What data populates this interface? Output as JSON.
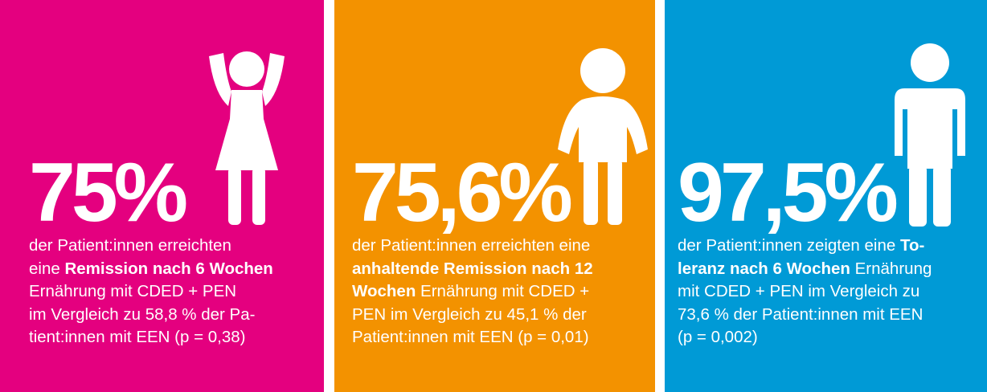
{
  "colors": {
    "panel_1": "#e4007f",
    "panel_2": "#f39200",
    "panel_3": "#009ad6",
    "text": "#ffffff"
  },
  "panels": [
    {
      "stat": "75%",
      "icon": "child-arms-raised-icon",
      "lines": [
        [
          "der Patient:innen erreichten"
        ],
        [
          "eine ",
          "Remission nach 6 Wochen"
        ],
        [
          "Ernährung mit CDED + PEN"
        ],
        [
          "im Vergleich zu 58,8 % der Pa-"
        ],
        [
          "tient:innen mit EEN (p = 0,38)"
        ]
      ]
    },
    {
      "stat": "75,6%",
      "icon": "child-standing-icon",
      "lines": [
        [
          "der Patient:innen erreichten eine"
        ],
        [
          "",
          "anhaltende Remission nach 12"
        ],
        [
          "",
          "Wochen",
          " Ernährung mit CDED +"
        ],
        [
          "PEN im Vergleich zu 45,1 % der"
        ],
        [
          "Patient:innen mit EEN (p = 0,01)"
        ]
      ]
    },
    {
      "stat": "97,5%",
      "icon": "person-standing-icon",
      "lines": [
        [
          "der Patient:innen zeigten eine ",
          "To-"
        ],
        [
          "",
          "leranz nach 6 Wochen",
          " Ernährung"
        ],
        [
          "mit CDED + PEN im Vergleich zu"
        ],
        [
          "73,6 % der Patient:innen mit EEN"
        ],
        [
          "(p = 0,002)"
        ]
      ]
    }
  ]
}
